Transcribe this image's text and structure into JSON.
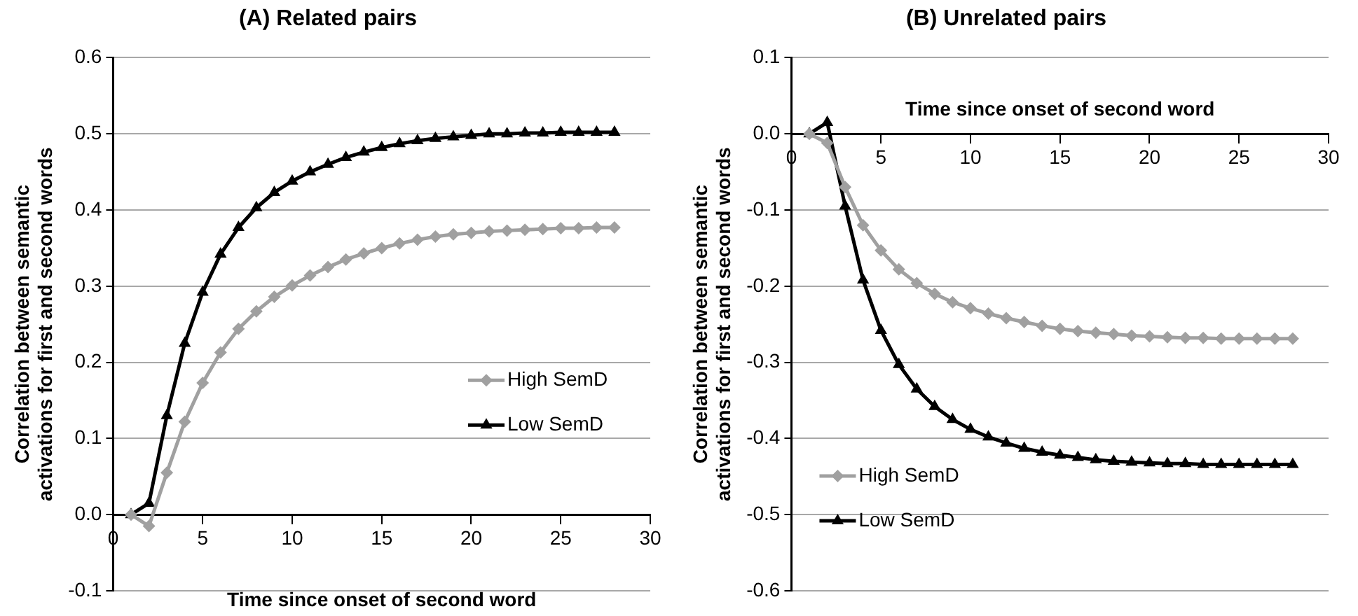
{
  "chart_data": [
    {
      "type": "line",
      "title": "(A) Related pairs",
      "xlabel": "Time since onset of second word",
      "ylabel": "Correlation between semantic activations for first and second words",
      "x": [
        1,
        2,
        3,
        4,
        5,
        6,
        7,
        8,
        9,
        10,
        11,
        12,
        13,
        14,
        15,
        16,
        17,
        18,
        19,
        20,
        21,
        22,
        23,
        24,
        25,
        26,
        27,
        28
      ],
      "series": [
        {
          "name": "High SemD",
          "color": "#a0a0a0",
          "marker": "diamond",
          "values": [
            0,
            -0.015,
            0.055,
            0.122,
            0.173,
            0.213,
            0.244,
            0.267,
            0.286,
            0.301,
            0.314,
            0.325,
            0.335,
            0.343,
            0.35,
            0.356,
            0.361,
            0.365,
            0.368,
            0.37,
            0.372,
            0.373,
            0.374,
            0.375,
            0.376,
            0.376,
            0.377,
            0.377
          ]
        },
        {
          "name": "Low SemD",
          "color": "#000000",
          "marker": "triangle",
          "values": [
            0,
            0.015,
            0.13,
            0.225,
            0.292,
            0.342,
            0.377,
            0.403,
            0.423,
            0.438,
            0.45,
            0.46,
            0.469,
            0.476,
            0.482,
            0.487,
            0.491,
            0.494,
            0.496,
            0.498,
            0.5,
            0.5,
            0.501,
            0.501,
            0.502,
            0.502,
            0.502,
            0.502
          ]
        }
      ],
      "xlim": [
        0,
        30
      ],
      "xticks": [
        0,
        5,
        10,
        15,
        20,
        25,
        30
      ],
      "ylim": [
        -0.1,
        0.6
      ],
      "yticks": [
        {
          "value": -0.1,
          "label": "-0.1"
        },
        {
          "value": 0,
          "label": "0.0"
        },
        {
          "value": 0.1,
          "label": "0.1"
        },
        {
          "value": 0.2,
          "label": "0.2"
        },
        {
          "value": 0.3,
          "label": "0.3"
        },
        {
          "value": 0.4,
          "label": "0.4"
        },
        {
          "value": 0.5,
          "label": "0.5"
        },
        {
          "value": 0.6,
          "label": "0.6"
        }
      ],
      "grid": "y",
      "legend": "right"
    },
    {
      "type": "line",
      "title": "(B) Unrelated pairs",
      "xlabel": "Time since onset of second word",
      "ylabel": "Correlation between semantic activations for first and second words",
      "x": [
        1,
        2,
        3,
        4,
        5,
        6,
        7,
        8,
        9,
        10,
        11,
        12,
        13,
        14,
        15,
        16,
        17,
        18,
        19,
        20,
        21,
        22,
        23,
        24,
        25,
        26,
        27,
        28
      ],
      "series": [
        {
          "name": "High SemD",
          "color": "#a0a0a0",
          "marker": "diamond",
          "values": [
            0,
            -0.012,
            -0.07,
            -0.12,
            -0.153,
            -0.178,
            -0.196,
            -0.21,
            -0.221,
            -0.229,
            -0.236,
            -0.242,
            -0.247,
            -0.252,
            -0.256,
            -0.259,
            -0.261,
            -0.263,
            -0.265,
            -0.266,
            -0.267,
            -0.268,
            -0.268,
            -0.269,
            -0.269,
            -0.269,
            -0.269,
            -0.269
          ]
        },
        {
          "name": "Low SemD",
          "color": "#000000",
          "marker": "triangle",
          "values": [
            0,
            0.015,
            -0.095,
            -0.192,
            -0.258,
            -0.303,
            -0.335,
            -0.358,
            -0.375,
            -0.388,
            -0.398,
            -0.406,
            -0.413,
            -0.418,
            -0.422,
            -0.425,
            -0.428,
            -0.43,
            -0.431,
            -0.432,
            -0.433,
            -0.433,
            -0.434,
            -0.434,
            -0.434,
            -0.434,
            -0.434,
            -0.434
          ]
        }
      ],
      "xlim": [
        0,
        30
      ],
      "xticks": [
        0,
        5,
        10,
        15,
        20,
        25,
        30
      ],
      "ylim": [
        -0.6,
        0.1
      ],
      "yticks": [
        {
          "value": -0.6,
          "label": "-0.6"
        },
        {
          "value": -0.5,
          "label": "-0.5"
        },
        {
          "value": -0.4,
          "label": "-0.4"
        },
        {
          "value": -0.3,
          "label": "-0.3"
        },
        {
          "value": -0.2,
          "label": "-0.2"
        },
        {
          "value": -0.1,
          "label": "-0.1"
        },
        {
          "value": 0,
          "label": "0.0"
        },
        {
          "value": 0.1,
          "label": "0.1"
        }
      ],
      "grid": "y",
      "legend": "bottom left"
    }
  ]
}
